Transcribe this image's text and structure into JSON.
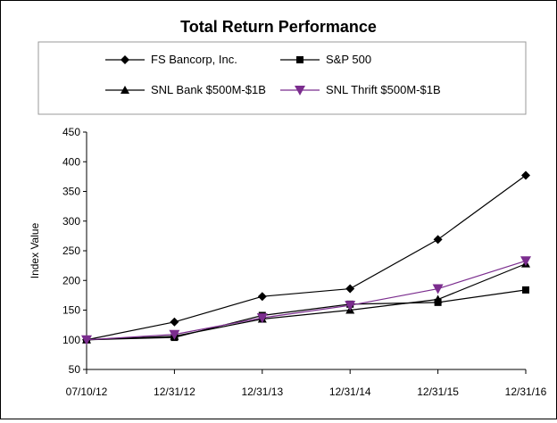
{
  "chart_data": {
    "type": "line",
    "title": "Total Return Performance",
    "xlabel": "",
    "ylabel": "Index Value",
    "ylim": [
      50,
      450
    ],
    "yticks": [
      50,
      100,
      150,
      200,
      250,
      300,
      350,
      400,
      450
    ],
    "grid": false,
    "legend_position": "top",
    "categories": [
      "07/10/12",
      "12/31/12",
      "12/31/13",
      "12/31/14",
      "12/31/15",
      "12/31/16"
    ],
    "series": [
      {
        "name": "FS Bancorp, Inc.",
        "marker": "diamond",
        "color": "#000000",
        "values": [
          100,
          130,
          173,
          186,
          269,
          377
        ]
      },
      {
        "name": "S&P 500",
        "marker": "square",
        "color": "#000000",
        "values": [
          100,
          104,
          141,
          160,
          163,
          184
        ]
      },
      {
        "name": "SNL Bank $500M-$1B",
        "marker": "triangle-up",
        "color": "#000000",
        "values": [
          100,
          106,
          135,
          150,
          168,
          228
        ]
      },
      {
        "name": "SNL Thrift $500M-$1B",
        "marker": "triangle-down",
        "color": "#7B2D8E",
        "values": [
          100,
          109,
          137,
          158,
          186,
          233
        ]
      }
    ]
  }
}
